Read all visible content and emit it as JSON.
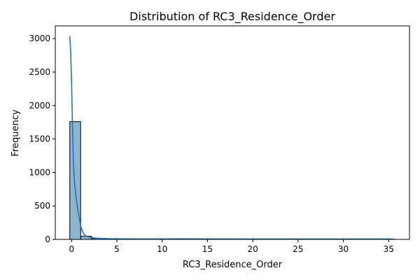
{
  "chart_data": {
    "type": "bar",
    "title": "Distribution of RC3_Residence_Order",
    "xlabel": "RC3_Residence_Order",
    "ylabel": "Frequency",
    "xlim": [
      -1.8,
      37.3
    ],
    "ylim": [
      0,
      3190
    ],
    "xticks": [
      0,
      5,
      10,
      15,
      20,
      25,
      30,
      35
    ],
    "yticks": [
      0,
      500,
      1000,
      1500,
      2000,
      2500,
      3000
    ],
    "bin_edges": [
      -0.2,
      1.0,
      2.2,
      3.4,
      4.6,
      5.8,
      7.0,
      8.2,
      9.4,
      10.6,
      11.8,
      13.0,
      14.2,
      15.4,
      16.6,
      17.8,
      19.0,
      20.2,
      21.4,
      22.6,
      23.8,
      25.0,
      26.2,
      27.4,
      28.6,
      29.8,
      31.0,
      32.2,
      33.4,
      34.6,
      35.8
    ],
    "counts": [
      1760,
      48,
      14,
      6,
      4,
      3,
      3,
      2,
      2,
      2,
      2,
      3,
      2,
      1,
      1,
      1,
      1,
      1,
      1,
      1,
      1,
      1,
      1,
      1,
      1,
      1,
      1,
      1,
      1,
      2
    ],
    "kde": {
      "x": [
        -0.2,
        -0.1,
        0.0,
        0.1,
        0.2,
        0.3,
        0.5,
        0.7,
        1.0,
        1.3,
        1.6,
        2.0,
        2.5,
        3.0,
        4.0,
        5.0,
        7.0,
        10.0,
        12.5,
        15.0,
        20.0,
        25.0,
        30.0,
        35.5
      ],
      "y": [
        3040,
        2800,
        2330,
        1680,
        1150,
        880,
        620,
        430,
        200,
        90,
        48,
        30,
        22,
        16,
        11,
        9,
        8,
        7,
        9,
        7,
        6,
        6,
        6,
        6
      ]
    },
    "colors": {
      "bar_fill": "#8eb4cf",
      "line": "#1f77b4"
    },
    "grid": false
  }
}
